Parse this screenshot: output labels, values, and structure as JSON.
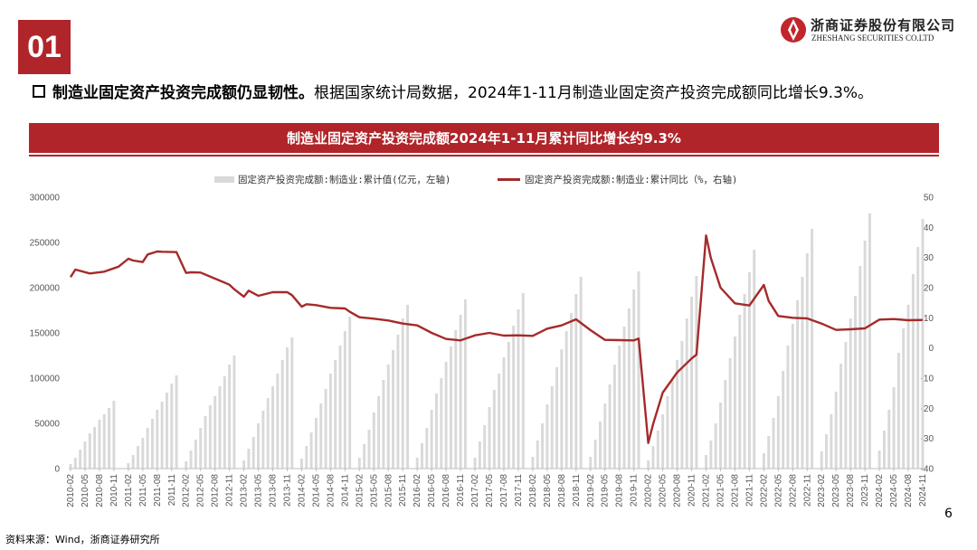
{
  "header": {
    "section_number": "01",
    "company_cn": "浙商证券股份有限公司",
    "company_en": "ZHESHANG SECURITIES CO.LTD",
    "headline_bold": "制造业固定资产投资完成额仍显韧性。",
    "headline_rest": "根据国家统计局数据，2024年1-11月制造业固定资产投资完成额同比增长9.3%。"
  },
  "banner_title": "制造业固定资产投资完成额2024年1-11月累计同比增长约9.3%",
  "footer": {
    "source": "资料来源：Wind，浙商证券研究所",
    "page": "6"
  },
  "colors": {
    "brand_red": "#b0252a",
    "bar_gray": "#d9d9d9",
    "line_red": "#a52a2a"
  },
  "chart_data": {
    "type": "bar+line",
    "legend": [
      "固定资产投资完成额:制造业:累计值(亿元，左轴)",
      "固定资产投资完成额:制造业:累计同比（%，右轴)"
    ],
    "x_tick_labels": [
      "2010-02",
      "2010-05",
      "2010-08",
      "2010-11",
      "2011-02",
      "2011-05",
      "2011-08",
      "2011-11",
      "2012-02",
      "2012-05",
      "2012-08",
      "2012-11",
      "2013-02",
      "2013-05",
      "2013-08",
      "2013-11",
      "2014-02",
      "2014-05",
      "2014-08",
      "2014-11",
      "2015-02",
      "2015-05",
      "2015-08",
      "2015-11",
      "2016-02",
      "2016-05",
      "2016-08",
      "2016-11",
      "2017-02",
      "2017-05",
      "2017-08",
      "2017-11",
      "2018-02",
      "2018-05",
      "2018-08",
      "2018-11",
      "2019-02",
      "2019-05",
      "2019-08",
      "2019-11",
      "2020-02",
      "2020-05",
      "2020-08",
      "2020-11",
      "2021-02",
      "2021-05",
      "2021-08",
      "2021-11",
      "2022-02",
      "2022-05",
      "2022-08",
      "2022-11",
      "2023-02",
      "2023-05",
      "2023-08",
      "2023-11",
      "2024-02",
      "2024-05",
      "2024-08",
      "2024-11"
    ],
    "left_axis": {
      "min": 0,
      "max": 300000,
      "ticks": [
        0,
        50000,
        100000,
        150000,
        200000,
        250000,
        300000
      ]
    },
    "right_axis": {
      "min": -40,
      "max": 50,
      "ticks": [
        -40,
        -30,
        -20,
        -10,
        0,
        10,
        20,
        30,
        40,
        50
      ]
    },
    "bar_series": {
      "name": "固定资产投资完成额:制造业:累计值(亿元，左轴)",
      "axis": "left",
      "years": [
        {
          "year": 2010,
          "values": [
            5000,
            12000,
            21000,
            30000,
            39000,
            46000,
            54000,
            60000,
            67000,
            75000
          ]
        },
        {
          "year": 2011,
          "values": [
            6000,
            15000,
            25000,
            34000,
            45000,
            55000,
            65000,
            74000,
            84000,
            94000,
            103000
          ]
        },
        {
          "year": 2012,
          "values": [
            8000,
            20000,
            32000,
            45000,
            58000,
            70000,
            80000,
            91000,
            102000,
            115000,
            125000
          ]
        },
        {
          "year": 2013,
          "values": [
            9000,
            22000,
            35000,
            50000,
            64000,
            78000,
            91000,
            105000,
            120000,
            134000,
            145000
          ]
        },
        {
          "year": 2014,
          "values": [
            11000,
            25000,
            40000,
            56000,
            72000,
            88000,
            105000,
            120000,
            136000,
            152000,
            168000
          ]
        },
        {
          "year": 2015,
          "values": [
            12000,
            27000,
            43000,
            62000,
            80000,
            98000,
            115000,
            131000,
            148000,
            166000,
            181000
          ]
        },
        {
          "year": 2016,
          "values": [
            12000,
            28000,
            45000,
            65000,
            83000,
            100000,
            118000,
            135000,
            153000,
            170000,
            187000
          ]
        },
        {
          "year": 2017,
          "values": [
            12000,
            30000,
            48000,
            68000,
            87000,
            105000,
            123000,
            140000,
            158000,
            176000,
            194000
          ]
        },
        {
          "year": 2018,
          "values": [
            13000,
            31000,
            50000,
            71000,
            91000,
            112000,
            132000,
            152000,
            172000,
            193000,
            212000
          ]
        },
        {
          "year": 2019,
          "values": [
            13000,
            32000,
            52000,
            72000,
            93000,
            115000,
            136000,
            157000,
            177000,
            198000,
            218000
          ]
        },
        {
          "year": 2020,
          "values": [
            9000,
            25000,
            42000,
            60000,
            80000,
            100000,
            120000,
            141000,
            166000,
            190000,
            213000
          ]
        },
        {
          "year": 2021,
          "values": [
            15000,
            31000,
            50000,
            73000,
            98000,
            122000,
            146000,
            170000,
            193000,
            217000,
            242000
          ]
        },
        {
          "year": 2022,
          "values": [
            17000,
            36000,
            56000,
            80000,
            108000,
            136000,
            160000,
            186000,
            212000,
            238000,
            265000
          ]
        },
        {
          "year": 2023,
          "values": [
            19000,
            38000,
            60000,
            85000,
            116000,
            140000,
            166000,
            191000,
            224000,
            252000,
            282000
          ]
        },
        {
          "year": 2024,
          "values": [
            20000,
            42000,
            65000,
            90000,
            128000,
            155000,
            181000,
            215000,
            245000,
            276000
          ]
        }
      ]
    },
    "line_series": {
      "name": "固定资产投资完成额:制造业:累计同比（%，右轴)",
      "axis": "right",
      "x": [
        "2010-02",
        "2010-03",
        "2010-06",
        "2010-09",
        "2010-12",
        "2011-02",
        "2011-03",
        "2011-05",
        "2011-06",
        "2011-08",
        "2011-09",
        "2011-12",
        "2012-02",
        "2012-03",
        "2012-05",
        "2012-08",
        "2012-11",
        "2012-12",
        "2013-02",
        "2013-03",
        "2013-05",
        "2013-08",
        "2013-11",
        "2013-12",
        "2014-02",
        "2014-03",
        "2014-05",
        "2014-08",
        "2014-11",
        "2014-12",
        "2015-02",
        "2015-05",
        "2015-08",
        "2015-11",
        "2016-02",
        "2016-05",
        "2016-08",
        "2016-11",
        "2017-02",
        "2017-05",
        "2017-08",
        "2017-11",
        "2018-02",
        "2018-05",
        "2018-08",
        "2018-11",
        "2019-02",
        "2019-05",
        "2019-08",
        "2019-11",
        "2019-12",
        "2020-02",
        "2020-03",
        "2020-05",
        "2020-08",
        "2020-11",
        "2020-12",
        "2021-02",
        "2021-03",
        "2021-05",
        "2021-08",
        "2021-11",
        "2022-02",
        "2022-03",
        "2022-05",
        "2022-08",
        "2022-11",
        "2023-02",
        "2023-05",
        "2023-08",
        "2023-11",
        "2024-02",
        "2024-05",
        "2024-08",
        "2024-11"
      ],
      "values": [
        23.5,
        26,
        24.7,
        25.3,
        27,
        29.6,
        29,
        28.5,
        31,
        32,
        31.9,
        31.8,
        24.9,
        25.1,
        25,
        23,
        21,
        19.5,
        17,
        19,
        17.3,
        18.5,
        18.5,
        17.5,
        13.7,
        14.5,
        14.2,
        13.3,
        13.1,
        12,
        10.2,
        9.7,
        9.1,
        8.1,
        7.5,
        5,
        3,
        2.5,
        4.2,
        5,
        4.1,
        4.2,
        4,
        6.4,
        7.5,
        9.5,
        5.9,
        2.7,
        2.6,
        2.5,
        3.1,
        -31.5,
        -25.2,
        -14.8,
        -8.1,
        -3.5,
        -2.2,
        37.3,
        29.8,
        20,
        14.8,
        14.1,
        20.9,
        15.6,
        10.6,
        10,
        9.8,
        8.1,
        6,
        6.2,
        6.5,
        9.4,
        9.6,
        9.2,
        9.3
      ]
    }
  }
}
